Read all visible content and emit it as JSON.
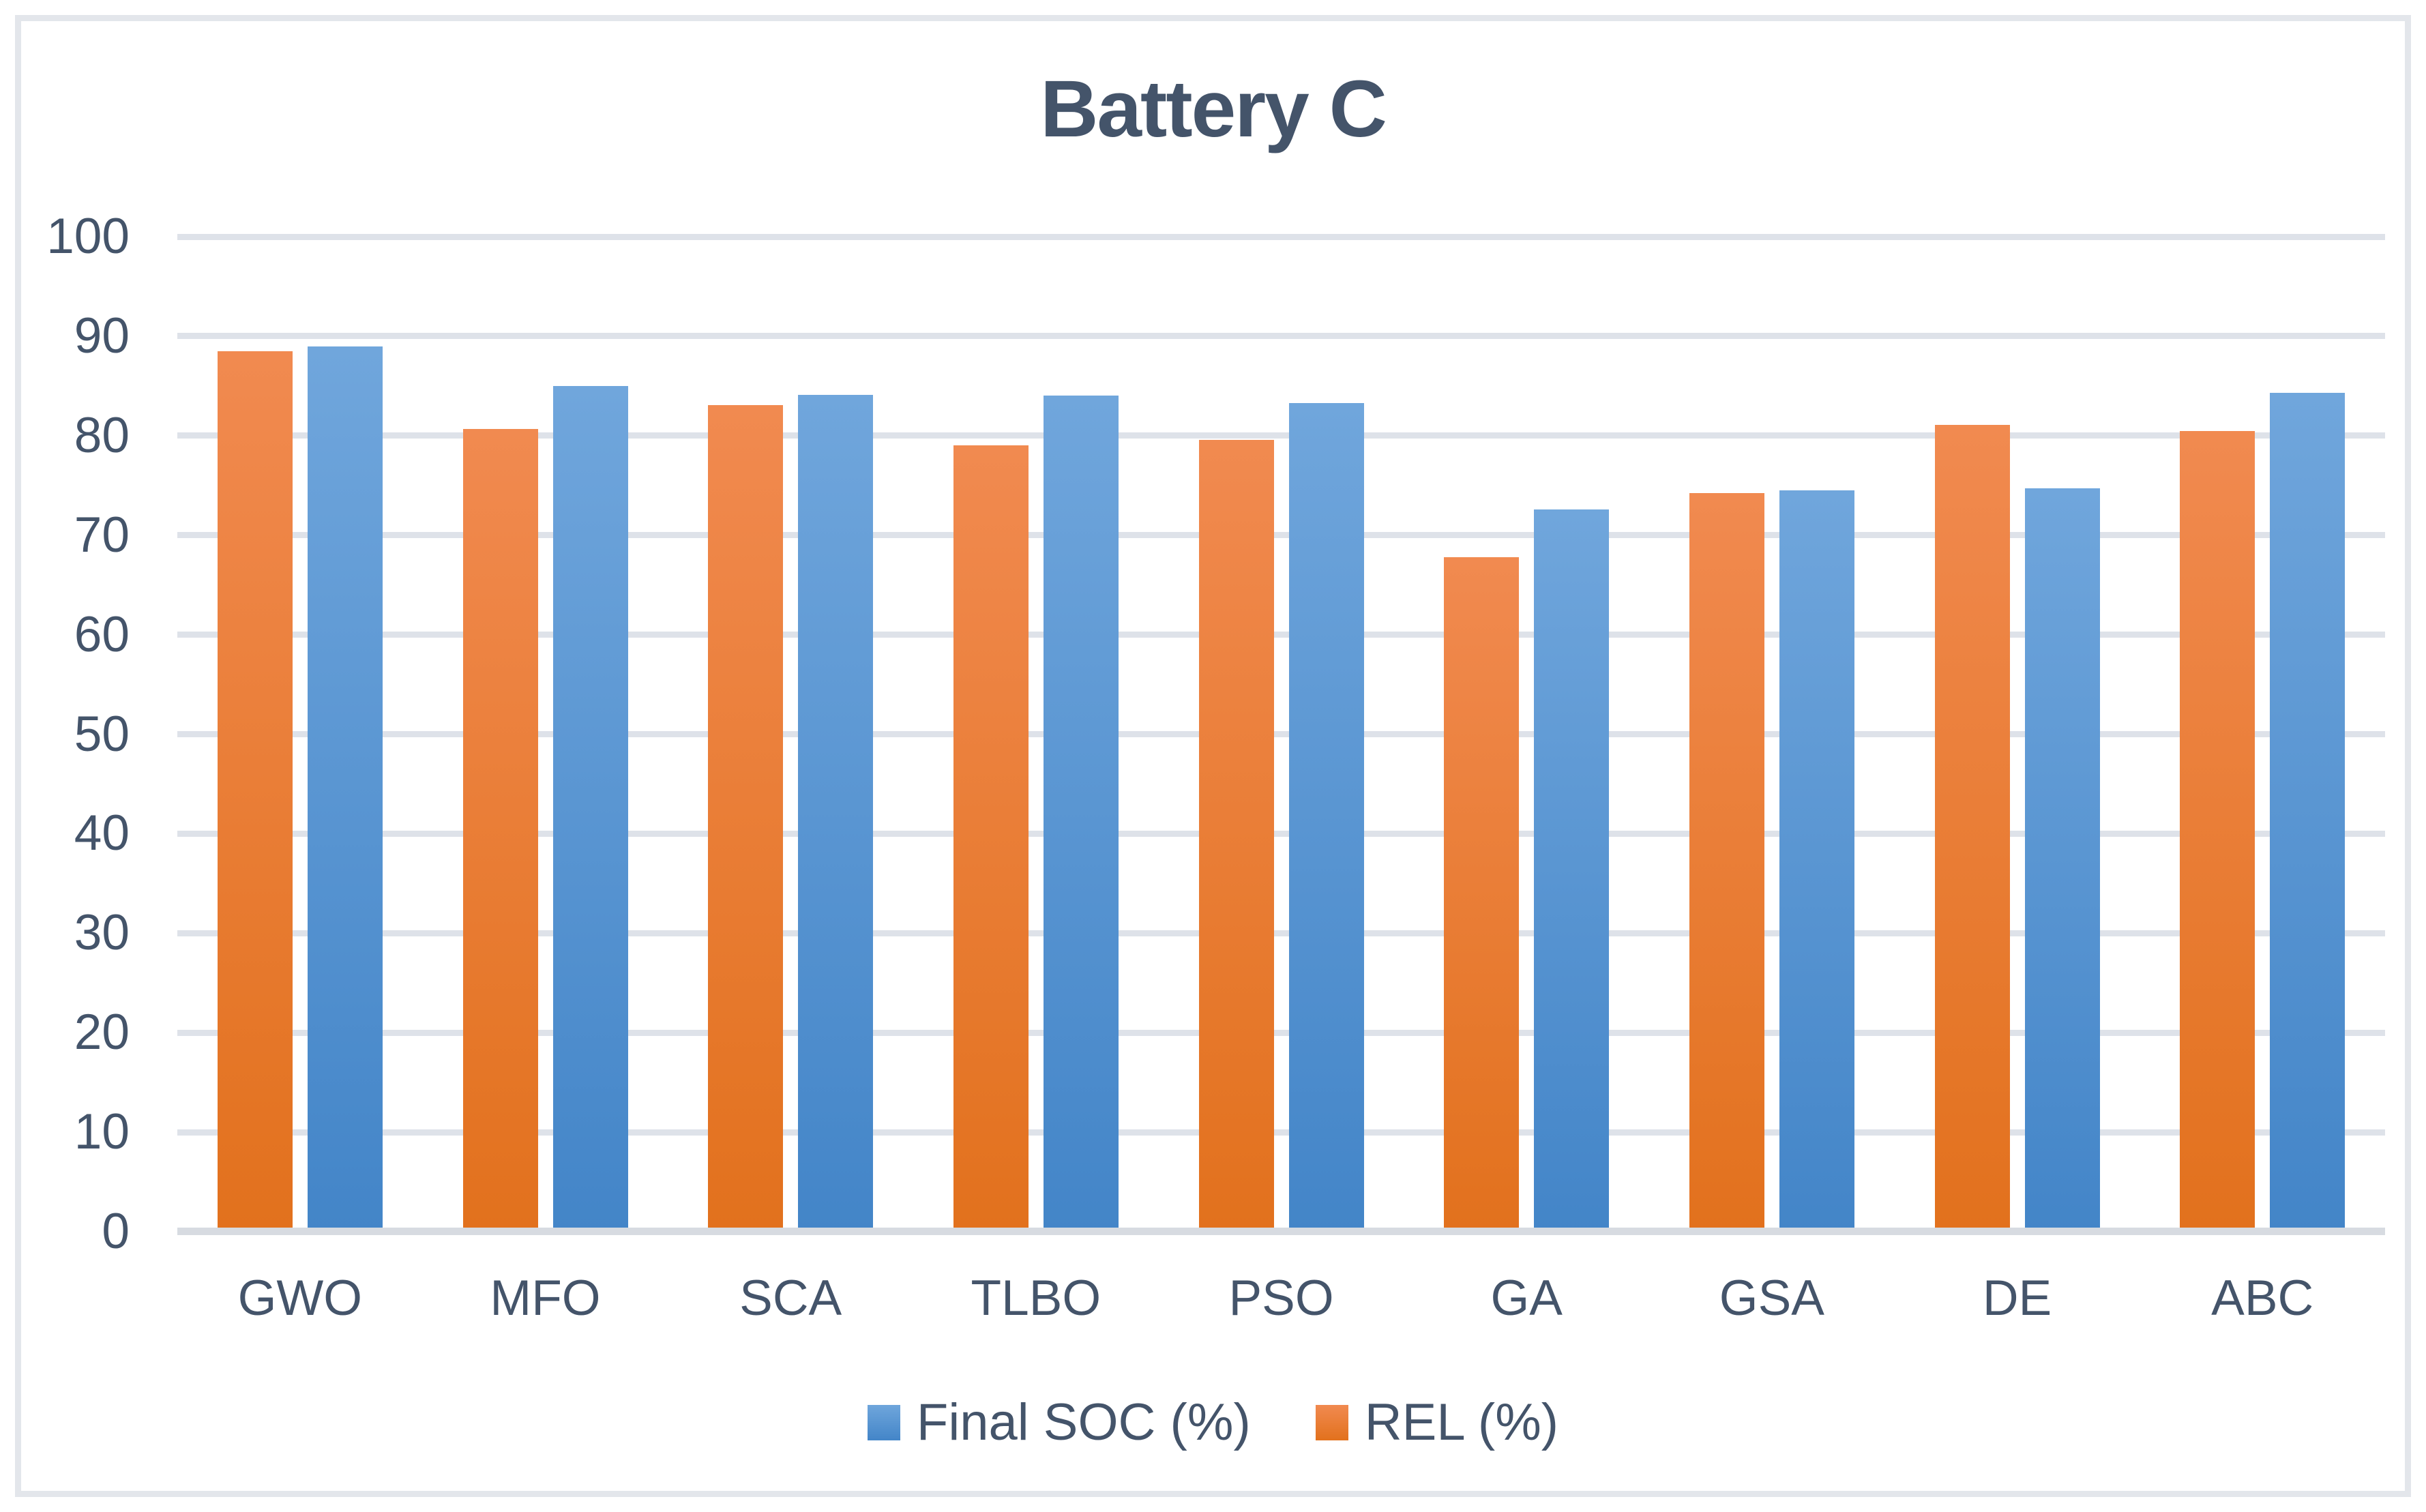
{
  "page": {
    "background_color": "#FFFFFF",
    "frame_border_color": "#E3E6EB"
  },
  "chart_data": {
    "type": "bar",
    "title": "Battery C",
    "title_color": "#44546A",
    "xlabel": "",
    "ylabel": "",
    "categories": [
      "GWO",
      "MFO",
      "SCA",
      "TLBO",
      "PSO",
      "GA",
      "GSA",
      "DE",
      "ABC"
    ],
    "series": [
      {
        "name": "REL (%)",
        "color_top": "#F18A50",
        "color_bottom": "#E2711D",
        "values": [
          88.5,
          80.7,
          83.1,
          79.0,
          79.6,
          67.8,
          74.2,
          81.1,
          80.5
        ]
      },
      {
        "name": "Final SOC (%)",
        "color_top": "#70A6DC",
        "color_bottom": "#4385C8",
        "values": [
          89.0,
          85.0,
          84.1,
          84.0,
          83.3,
          72.6,
          74.5,
          74.7,
          84.3
        ]
      }
    ],
    "group_bar_order": [
      "REL (%)",
      "Final SOC (%)"
    ],
    "legend_entries": [
      {
        "label": "Final SOC (%)",
        "swatch": "blue-gradient"
      },
      {
        "label": "REL (%)",
        "swatch": "orange-gradient"
      }
    ],
    "legend_position": "bottom",
    "ylim": [
      0,
      100
    ],
    "yticks": [
      0,
      10,
      20,
      30,
      40,
      50,
      60,
      70,
      80,
      90,
      100
    ],
    "grid": true,
    "gridline_color": "#DEE2E9",
    "axis_line_color": "#D7DBE1",
    "axis_text_color": "#44546A"
  }
}
